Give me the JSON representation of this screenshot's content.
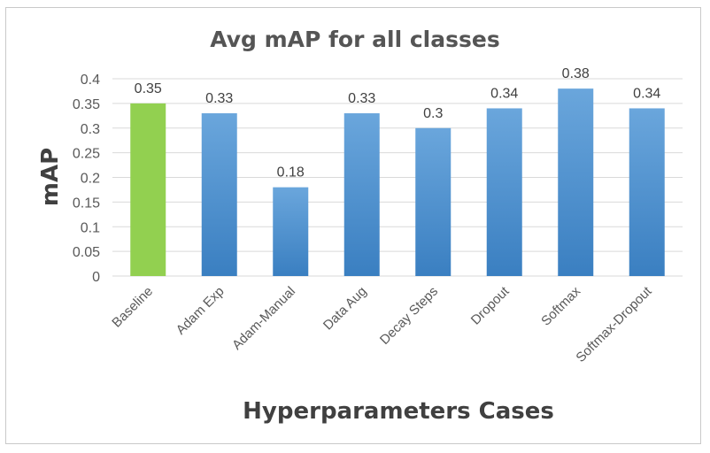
{
  "chart_data": {
    "type": "bar",
    "title": "Avg mAP for all classes",
    "xlabel": "Hyperparameters Cases",
    "ylabel": "mAP",
    "categories": [
      "Baseline",
      "Adam Exp",
      "Adam-Manual",
      "Data Aug",
      "Decay Steps",
      "Dropout",
      "Softmax",
      "Softmax-Dropout"
    ],
    "values": [
      0.35,
      0.33,
      0.18,
      0.33,
      0.3,
      0.34,
      0.38,
      0.34
    ],
    "data_labels": [
      "0.35",
      "0.33",
      "0.18",
      "0.33",
      "0.3",
      "0.34",
      "0.38",
      "0.34"
    ],
    "ylim": [
      0,
      0.4
    ],
    "yticks": [
      "0",
      "0.05",
      "0.1",
      "0.15",
      "0.2",
      "0.25",
      "0.3",
      "0.35",
      "0.4"
    ],
    "grid": true,
    "legend": "none",
    "colors": {
      "highlight": "#92d050",
      "bar": "#5b9bd5",
      "bar_dark": "#3f82c4",
      "grid": "#d9d9d9"
    },
    "highlight_category": "Baseline"
  }
}
